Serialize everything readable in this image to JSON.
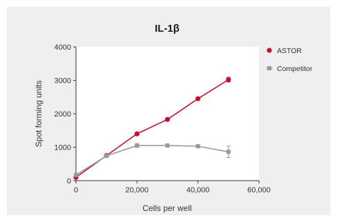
{
  "chart_data": {
    "type": "line",
    "title": "IL-1β",
    "xlabel": "Cells per well",
    "ylabel": "Spot forming units",
    "xlim": [
      0,
      60000
    ],
    "ylim": [
      0,
      4000
    ],
    "xticks": [
      0,
      20000,
      40000,
      60000
    ],
    "xtick_labels": [
      "0",
      "20,000",
      "40,000",
      "60,000"
    ],
    "yticks": [
      0,
      1000,
      2000,
      3000,
      4000
    ],
    "ytick_labels": [
      "0",
      "1000",
      "2000",
      "3000",
      "4000"
    ],
    "grid": false,
    "legend_position": "top-right",
    "series": [
      {
        "name": "ASTOR",
        "color": "#c8102e",
        "marker": "circle",
        "x": [
          0,
          10000,
          20000,
          30000,
          40000,
          50000
        ],
        "y": [
          100,
          750,
          1400,
          1830,
          2450,
          3020
        ],
        "error": [
          0,
          30,
          40,
          40,
          40,
          70
        ]
      },
      {
        "name": "Competitor",
        "color": "#9a9a9a",
        "marker": "square",
        "x": [
          0,
          10000,
          20000,
          30000,
          40000,
          50000
        ],
        "y": [
          170,
          740,
          1050,
          1050,
          1030,
          860
        ],
        "error": [
          0,
          40,
          60,
          50,
          40,
          170
        ]
      }
    ]
  }
}
